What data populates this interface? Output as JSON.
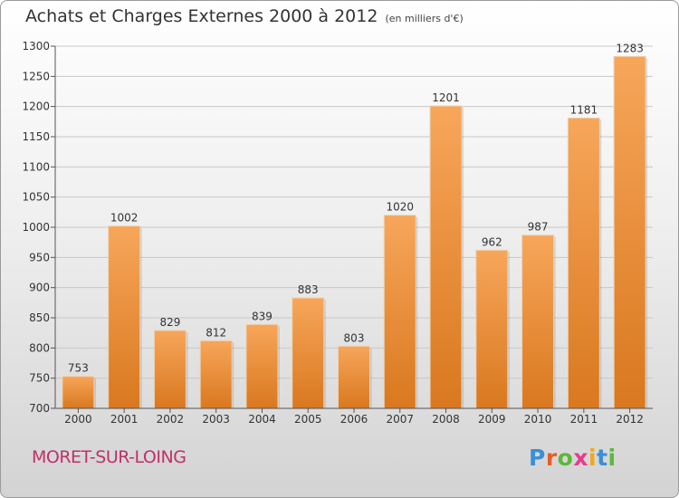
{
  "header": {
    "title": "Achats et Charges Externes 2000 à 2012",
    "subtitle": "(en milliers d'€)"
  },
  "footer": {
    "city": "MORET-SUR-LOING",
    "logo": {
      "text": "Proxiti",
      "letter_colors": [
        "#3a8fd6",
        "#e85c2c",
        "#5cb83a",
        "#e83a8c",
        "#f2a81c",
        "#3a8fd6",
        "#5cb83a"
      ]
    }
  },
  "colors": {
    "bar_light": "#f7a65a",
    "bar_dark": "#d9781f",
    "grid": "#c8c8c8",
    "axis": "#555555"
  },
  "chart_data": {
    "type": "bar",
    "categories": [
      "2000",
      "2001",
      "2002",
      "2003",
      "2004",
      "2005",
      "2006",
      "2007",
      "2008",
      "2009",
      "2010",
      "2011",
      "2012"
    ],
    "values": [
      753,
      1002,
      829,
      812,
      839,
      883,
      803,
      1020,
      1201,
      962,
      987,
      1181,
      1283
    ],
    "title": "Achats et Charges Externes 2000 à 2012",
    "ylim": [
      700,
      1300
    ],
    "yticks": [
      700,
      750,
      800,
      850,
      900,
      950,
      1000,
      1050,
      1100,
      1150,
      1200,
      1250,
      1300
    ],
    "grid": true,
    "data_labels": true
  }
}
